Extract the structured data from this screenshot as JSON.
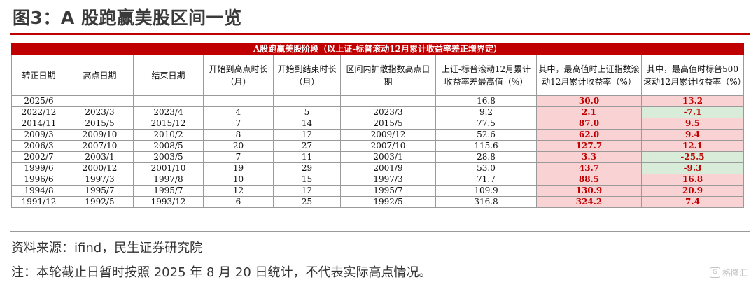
{
  "figure": {
    "title": "图3：A 股跑赢美股区间一览"
  },
  "table": {
    "banner": "A股跑赢美股阶段（以上证-标普滚动12月累计收益率差正增界定）",
    "headers": [
      "转正日期",
      "高点日期",
      "结束日期",
      "开始到高点时长（月）",
      "开始到结束时长（月）",
      "区间内扩散指数高点日期",
      "上证-标普滚动12月累计收益率差最高值（%）",
      "其中，最高值时上证指数滚动12月累计收益率（%）",
      "其中，最高值时标普500滚动12月累计收益率（%）"
    ],
    "rows": [
      [
        "2025/6",
        "",
        "",
        "",
        "",
        "",
        "16.8",
        "30.0",
        "13.2"
      ],
      [
        "2022/12",
        "2023/3",
        "2023/4",
        "4",
        "5",
        "2023/3",
        "9.2",
        "2.1",
        "-7.1"
      ],
      [
        "2014/11",
        "2015/5",
        "2015/12",
        "7",
        "14",
        "2015/5",
        "77.5",
        "87.0",
        "9.5"
      ],
      [
        "2009/3",
        "2009/10",
        "2010/2",
        "8",
        "12",
        "2009/12",
        "52.6",
        "62.0",
        "9.4"
      ],
      [
        "2006/3",
        "2007/10",
        "2008/5",
        "20",
        "27",
        "2007/10",
        "115.6",
        "127.7",
        "12.1"
      ],
      [
        "2002/7",
        "2003/1",
        "2003/5",
        "7",
        "11",
        "2003/1",
        "28.8",
        "3.3",
        "-25.5"
      ],
      [
        "1999/6",
        "2000/12",
        "2001/10",
        "19",
        "29",
        "2001/9",
        "53.0",
        "43.7",
        "-9.3"
      ],
      [
        "1996/6",
        "1997/3",
        "1997/8",
        "10",
        "15",
        "1997/3",
        "71.7",
        "88.5",
        "16.8"
      ],
      [
        "1994/8",
        "1995/7",
        "1995/7",
        "12",
        "12",
        "1995/7",
        "109.9",
        "130.9",
        "20.9"
      ],
      [
        "1991/12",
        "1992/5",
        "1993/12",
        "6",
        "25",
        "1992/5",
        "316.8",
        "324.2",
        "7.4"
      ]
    ]
  },
  "notes": {
    "source": "资料来源：ifind，民生证券研究院",
    "footnote": "注：本轮截止日暂时按照 2025 年 8 月 20 日统计，不代表实际高点情况。"
  },
  "watermark": {
    "icon": "gelonghui-logo-icon",
    "text": "格隆汇"
  },
  "colors": {
    "accent": "#c00000",
    "positive_fill": "#f9d3d4",
    "negative_fill": "#d9ecd9"
  }
}
